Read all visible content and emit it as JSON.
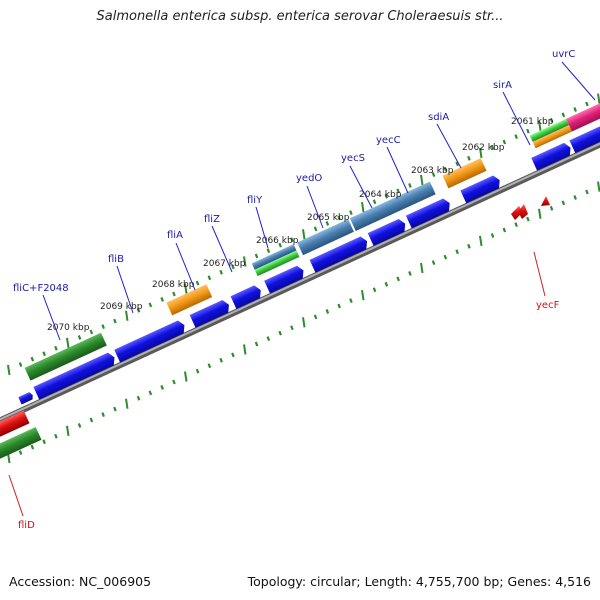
{
  "title": "Salmonella enterica subsp. enterica serovar Choleraesuis str...",
  "footer": {
    "accession": "Accession: NC_006905",
    "stats": "Topology: circular; Length: 4,755,700 bp; Genes: 4,516"
  },
  "colors": {
    "backbone": "#8a8a8a",
    "tick": "#2e8b2e",
    "label_top": "#1a1aaa",
    "label_bottom": "#cc1111",
    "cds_blue": "#1010e0",
    "gene_green": "#2a8a2a",
    "gene_orange": "#f29a1a",
    "gene_steel": "#4a7fb0",
    "gene_red": "#e01010",
    "gene_magenta": "#e0207a",
    "gene_lightgreen": "#40cc40"
  },
  "kbp_labels": [
    "2070 kbp",
    "2069 kbp",
    "2068 kbp",
    "2067 kbp",
    "2066 kbp",
    "2065 kbp",
    "2064 kbp",
    "2063 kbp",
    "2062 kbp",
    "2061 kbp"
  ],
  "gene_labels_top": [
    "fliC+F2048",
    "fliB",
    "fliA",
    "fliZ",
    "fliY",
    "yedO",
    "yecS",
    "yecC",
    "sdiA",
    "sirA",
    "uvrC"
  ],
  "gene_labels_bottom": [
    "fliD",
    "yecF"
  ]
}
